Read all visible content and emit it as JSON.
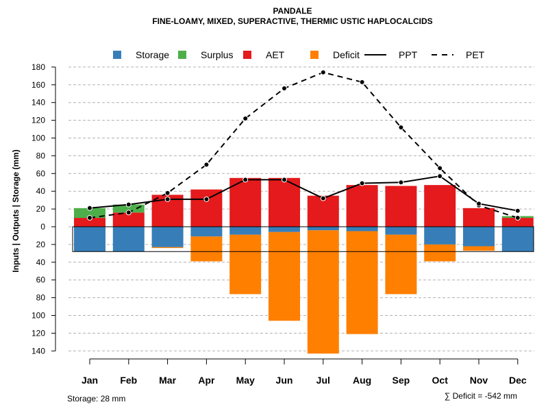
{
  "chart_data": {
    "type": "bar",
    "title": "PANDALE",
    "subtitle": "FINE-LOAMY, MIXED, SUPERACTIVE, THERMIC USTIC HAPLOCALCIDS",
    "ylabel": "Inputs | Outputs | Storage    (mm)",
    "categories": [
      "Jan",
      "Feb",
      "Mar",
      "Apr",
      "May",
      "Jun",
      "Jul",
      "Aug",
      "Sep",
      "Oct",
      "Nov",
      "Dec"
    ],
    "ylim": [
      -140,
      180
    ],
    "yticks": [
      180,
      160,
      140,
      120,
      100,
      80,
      60,
      40,
      20,
      0,
      -20,
      -40,
      -60,
      -80,
      -100,
      -120,
      -140
    ],
    "ytick_labels": [
      "180",
      "160",
      "140",
      "120",
      "100",
      "80",
      "60",
      "40",
      "20",
      "0",
      "20",
      "40",
      "60",
      "80",
      "100",
      "120",
      "140"
    ],
    "legend": [
      {
        "name": "Storage",
        "color": "#377eb8",
        "kind": "box"
      },
      {
        "name": "Surplus",
        "color": "#4daf4a",
        "kind": "box"
      },
      {
        "name": "AET",
        "color": "#e41a1c",
        "kind": "box"
      },
      {
        "name": "Deficit",
        "color": "#ff7f00",
        "kind": "box"
      },
      {
        "name": "PPT",
        "color": "#000000",
        "kind": "solid"
      },
      {
        "name": "PET",
        "color": "#000000",
        "kind": "dashed"
      }
    ],
    "series": [
      {
        "name": "AET",
        "values": [
          10,
          16,
          36,
          42,
          55,
          55,
          35,
          47,
          46,
          47,
          21,
          10
        ]
      },
      {
        "name": "Surplus",
        "values": [
          11,
          9,
          0,
          0,
          0,
          0,
          0,
          0,
          0,
          0,
          0,
          2
        ]
      },
      {
        "name": "Storage",
        "values": [
          28,
          28,
          23,
          11,
          9,
          6,
          4,
          5,
          9,
          20,
          22,
          28
        ]
      },
      {
        "name": "Deficit",
        "values": [
          0,
          0,
          1,
          28,
          67,
          100,
          139,
          116,
          67,
          19,
          5,
          0
        ]
      },
      {
        "name": "PPT",
        "values": [
          21,
          25,
          31,
          31,
          53,
          53,
          32,
          49,
          50,
          57,
          26,
          18
        ]
      },
      {
        "name": "PET",
        "values": [
          10,
          16,
          38,
          70,
          122,
          156,
          174,
          163,
          112,
          66,
          24,
          10
        ]
      }
    ],
    "storage_capacity": 28,
    "footer_left": "Storage: 28 mm",
    "footer_right": "∑ Deficit = -542 mm"
  }
}
